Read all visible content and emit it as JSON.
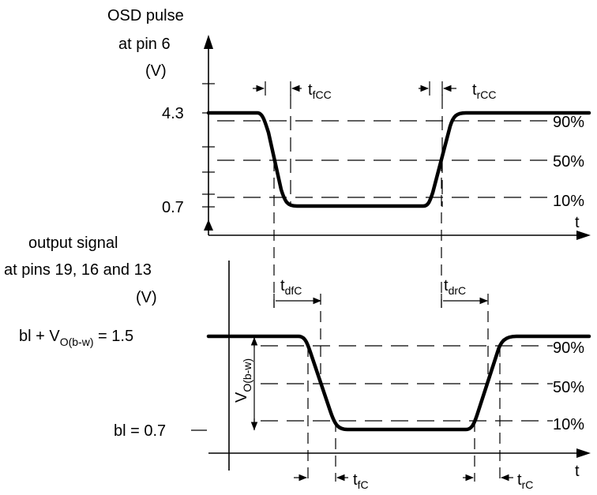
{
  "top": {
    "ylabel_line1": "OSD pulse",
    "ylabel_line2": "at pin 6",
    "ylabel_unit": "(V)",
    "y_high": "4.3",
    "y_low": "0.7",
    "pct_90": "90%",
    "pct_50": "50%",
    "pct_10": "10%",
    "x_label": "t",
    "t_fall": {
      "main": "t",
      "sub": "fCC"
    },
    "t_rise": {
      "main": "t",
      "sub": "rCC"
    }
  },
  "bottom": {
    "ylabel_line1": "output signal",
    "ylabel_line2": "at pins 19, 16 and 13",
    "ylabel_unit": "(V)",
    "y_high": {
      "prefix": "bl + V",
      "sub": "O(b-w)",
      "suffix": " = 1.5"
    },
    "y_low": "bl = 0.7",
    "vert_label": {
      "main": "V",
      "sub": "O(b-w)"
    },
    "pct_90": "90%",
    "pct_50": "50%",
    "pct_10": "10%",
    "x_label": "t",
    "t_delay_fall": {
      "main": "t",
      "sub": "dfC"
    },
    "t_delay_rise": {
      "main": "t",
      "sub": "drC"
    },
    "t_fall": {
      "main": "t",
      "sub": "fC"
    },
    "t_rise": {
      "main": "t",
      "sub": "rC"
    }
  }
}
